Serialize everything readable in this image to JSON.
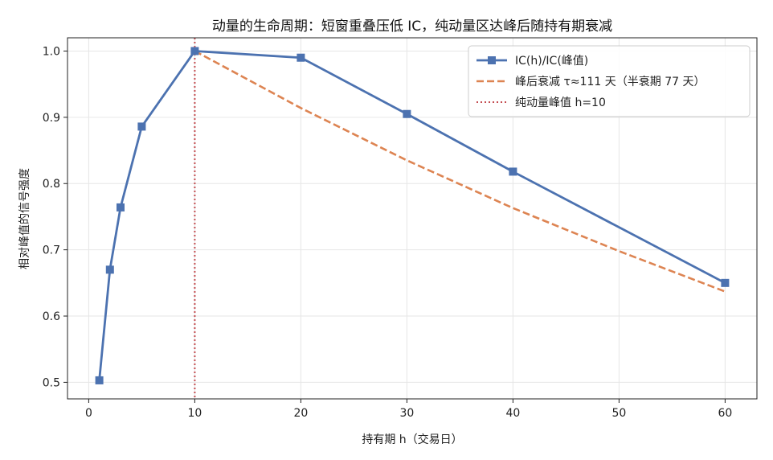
{
  "chart_data": {
    "type": "line",
    "title": "动量的生命周期：短窗重叠压低 IC，纯动量区达峰后随持有期衰减",
    "xlabel": "持有期 h（交易日）",
    "ylabel": "相对峰值的信号强度",
    "xlim": [
      -2,
      63
    ],
    "ylim": [
      0.475,
      1.02
    ],
    "xticks": [
      0,
      10,
      20,
      30,
      40,
      50,
      60
    ],
    "yticks": [
      0.5,
      0.6,
      0.7,
      0.8,
      0.9,
      1.0
    ],
    "grid": true,
    "legend_position": "top-right",
    "series": [
      {
        "name": "IC(h)/IC(峰值)",
        "style": "solid-square-markers",
        "color": "#4c72b0",
        "x": [
          1,
          2,
          3,
          5,
          10,
          20,
          30,
          40,
          60
        ],
        "y": [
          0.503,
          0.67,
          0.764,
          0.886,
          1.0,
          0.99,
          0.905,
          0.818,
          0.65
        ]
      },
      {
        "name": "峰后衰减 τ≈111 天（半衰期 77 天）",
        "style": "dashed",
        "color": "#dd8452",
        "x": [
          10,
          20,
          30,
          40,
          50,
          60
        ],
        "y": [
          1.0,
          0.914,
          0.835,
          0.763,
          0.698,
          0.637
        ]
      },
      {
        "name": "纯动量峰值 h=10",
        "style": "dotted-vertical",
        "color": "#c44e52",
        "x": [
          10,
          10
        ],
        "y": [
          0.475,
          1.02
        ]
      }
    ]
  }
}
